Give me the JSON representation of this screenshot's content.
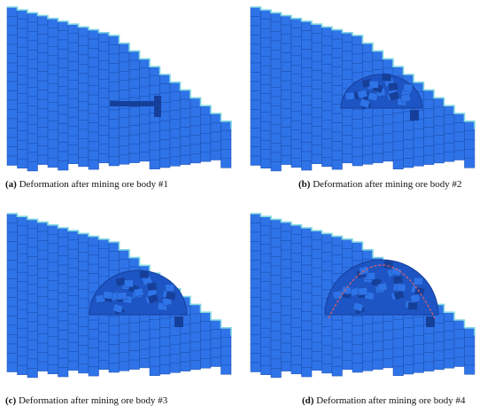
{
  "panels": [
    {
      "letter": "(a)",
      "caption": "Deformation after mining ore body #1",
      "stage": 1
    },
    {
      "letter": "(b)",
      "caption": "Deformation after mining ore body #2",
      "stage": 2
    },
    {
      "letter": "(c)",
      "caption": "Deformation after mining ore body #3",
      "stage": 3
    },
    {
      "letter": "(d)",
      "caption": "Deformation after mining ore body #4",
      "stage": 4
    }
  ],
  "colors": {
    "block": "#2f73e8",
    "grid": "#1a4fb0",
    "shade": "#1e55c4",
    "cavity": "#163f9a",
    "edge": "#7fd6e0",
    "arch": "#e06060"
  }
}
